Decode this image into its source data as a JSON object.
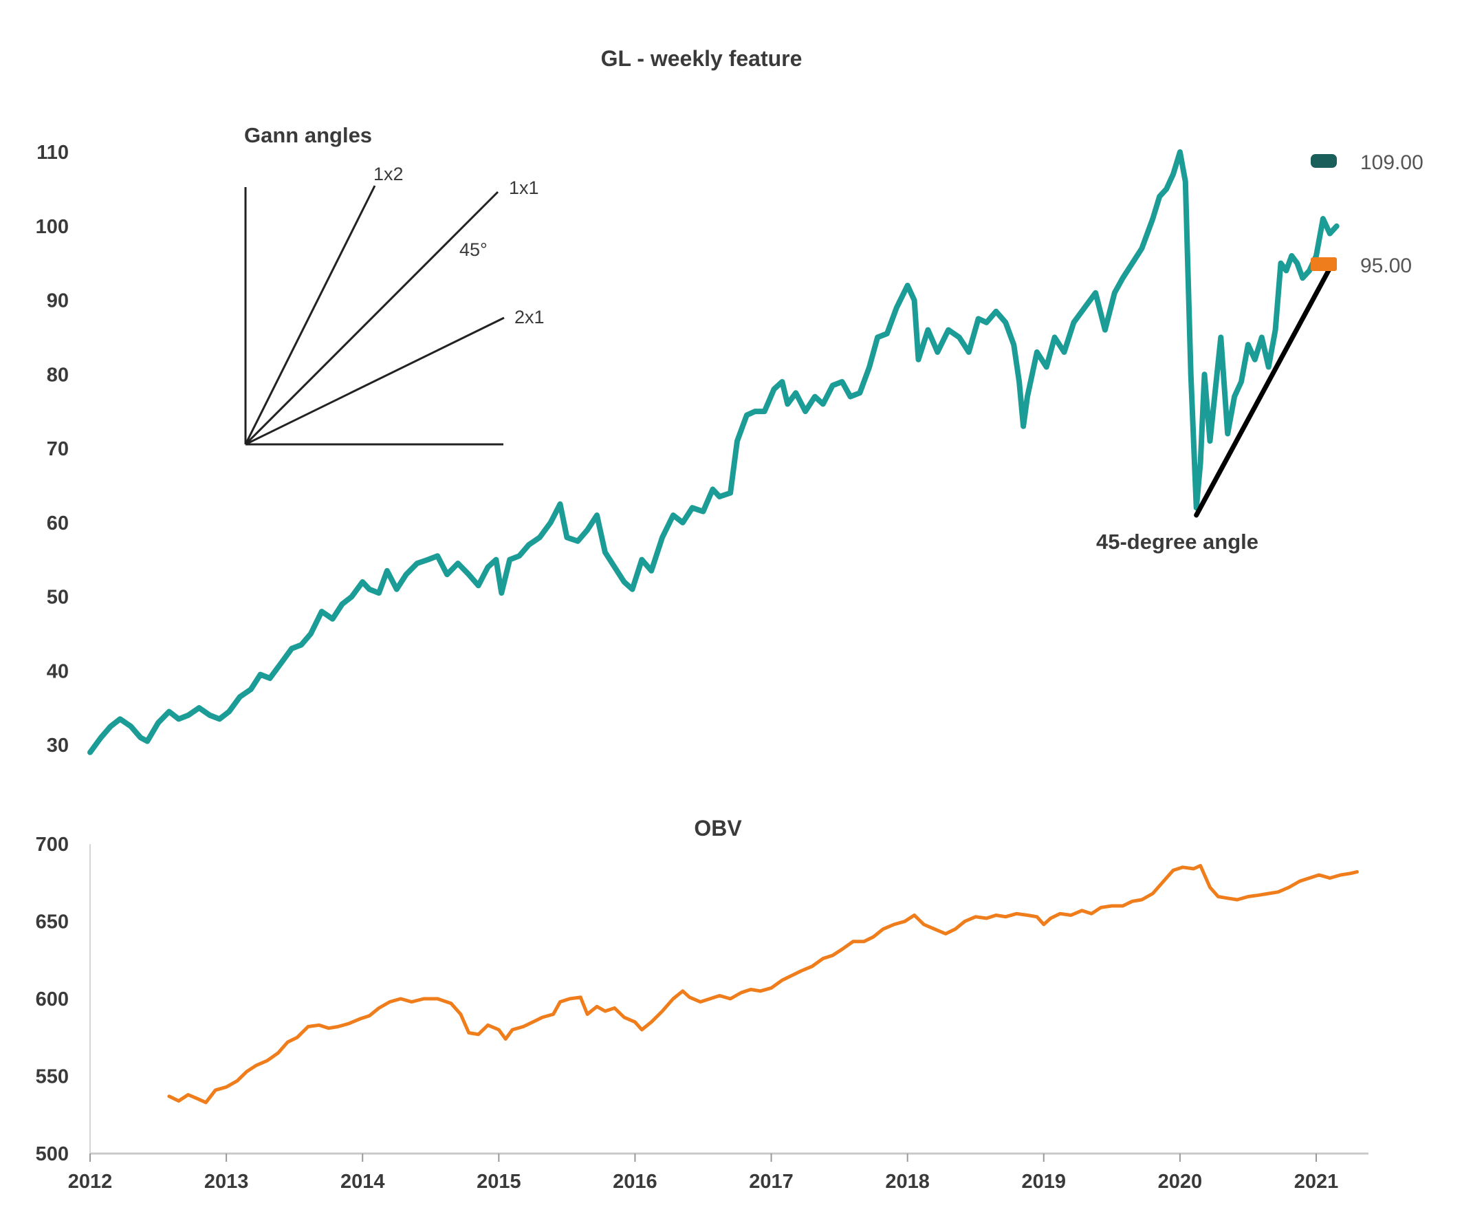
{
  "chart_data": [
    {
      "type": "line",
      "title": "GL - weekly feature",
      "ylim": [
        28,
        112
      ],
      "yticks": [
        "30",
        "40",
        "50",
        "60",
        "70",
        "80",
        "90",
        "100",
        "110"
      ],
      "grid": false,
      "legend": [
        {
          "label": "109.00",
          "color": "#1a5f5a"
        },
        {
          "label": "95.00",
          "color": "#f07d1b"
        }
      ],
      "series": [
        {
          "color": "#1c9c96",
          "points": [
            [
              2012.0,
              29
            ],
            [
              2012.08,
              31
            ],
            [
              2012.15,
              32.5
            ],
            [
              2012.22,
              33.5
            ],
            [
              2012.3,
              32.5
            ],
            [
              2012.37,
              31
            ],
            [
              2012.42,
              30.5
            ],
            [
              2012.5,
              33
            ],
            [
              2012.58,
              34.5
            ],
            [
              2012.65,
              33.5
            ],
            [
              2012.72,
              34
            ],
            [
              2012.8,
              35
            ],
            [
              2012.88,
              34
            ],
            [
              2012.95,
              33.5
            ],
            [
              2013.02,
              34.5
            ],
            [
              2013.1,
              36.5
            ],
            [
              2013.18,
              37.5
            ],
            [
              2013.25,
              39.5
            ],
            [
              2013.32,
              39
            ],
            [
              2013.4,
              41
            ],
            [
              2013.48,
              43
            ],
            [
              2013.55,
              43.5
            ],
            [
              2013.62,
              45
            ],
            [
              2013.7,
              48
            ],
            [
              2013.78,
              47
            ],
            [
              2013.85,
              49
            ],
            [
              2013.92,
              50
            ],
            [
              2014.0,
              52
            ],
            [
              2014.05,
              51
            ],
            [
              2014.12,
              50.5
            ],
            [
              2014.18,
              53.5
            ],
            [
              2014.25,
              51
            ],
            [
              2014.32,
              53
            ],
            [
              2014.4,
              54.5
            ],
            [
              2014.48,
              55
            ],
            [
              2014.55,
              55.5
            ],
            [
              2014.62,
              53
            ],
            [
              2014.7,
              54.5
            ],
            [
              2014.78,
              53
            ],
            [
              2014.85,
              51.5
            ],
            [
              2014.92,
              54
            ],
            [
              2014.98,
              55
            ],
            [
              2015.02,
              50.5
            ],
            [
              2015.08,
              55
            ],
            [
              2015.15,
              55.5
            ],
            [
              2015.22,
              57
            ],
            [
              2015.3,
              58
            ],
            [
              2015.38,
              60
            ],
            [
              2015.45,
              62.5
            ],
            [
              2015.5,
              58
            ],
            [
              2015.58,
              57.5
            ],
            [
              2015.65,
              59
            ],
            [
              2015.72,
              61
            ],
            [
              2015.78,
              56
            ],
            [
              2015.85,
              54
            ],
            [
              2015.92,
              52
            ],
            [
              2015.98,
              51
            ],
            [
              2016.05,
              55
            ],
            [
              2016.12,
              53.5
            ],
            [
              2016.2,
              58
            ],
            [
              2016.28,
              61
            ],
            [
              2016.35,
              60
            ],
            [
              2016.42,
              62
            ],
            [
              2016.5,
              61.5
            ],
            [
              2016.57,
              64.5
            ],
            [
              2016.62,
              63.5
            ],
            [
              2016.7,
              64
            ],
            [
              2016.75,
              71
            ],
            [
              2016.82,
              74.5
            ],
            [
              2016.88,
              75
            ],
            [
              2016.95,
              75
            ],
            [
              2017.02,
              78
            ],
            [
              2017.08,
              79
            ],
            [
              2017.12,
              76
            ],
            [
              2017.18,
              77.5
            ],
            [
              2017.25,
              75
            ],
            [
              2017.32,
              77
            ],
            [
              2017.38,
              76
            ],
            [
              2017.45,
              78.5
            ],
            [
              2017.52,
              79
            ],
            [
              2017.58,
              77
            ],
            [
              2017.65,
              77.5
            ],
            [
              2017.72,
              81
            ],
            [
              2017.78,
              85
            ],
            [
              2017.85,
              85.5
            ],
            [
              2017.92,
              89
            ],
            [
              2018.0,
              92
            ],
            [
              2018.05,
              90
            ],
            [
              2018.08,
              82
            ],
            [
              2018.15,
              86
            ],
            [
              2018.22,
              83
            ],
            [
              2018.3,
              86
            ],
            [
              2018.38,
              85
            ],
            [
              2018.45,
              83
            ],
            [
              2018.52,
              87.5
            ],
            [
              2018.58,
              87
            ],
            [
              2018.65,
              88.5
            ],
            [
              2018.72,
              87
            ],
            [
              2018.78,
              84
            ],
            [
              2018.82,
              79
            ],
            [
              2018.85,
              73
            ],
            [
              2018.88,
              77
            ],
            [
              2018.95,
              83
            ],
            [
              2019.02,
              81
            ],
            [
              2019.08,
              85
            ],
            [
              2019.15,
              83
            ],
            [
              2019.22,
              87
            ],
            [
              2019.3,
              89
            ],
            [
              2019.38,
              91
            ],
            [
              2019.45,
              86
            ],
            [
              2019.52,
              91
            ],
            [
              2019.58,
              93
            ],
            [
              2019.65,
              95
            ],
            [
              2019.72,
              97
            ],
            [
              2019.8,
              101
            ],
            [
              2019.85,
              104
            ],
            [
              2019.9,
              105
            ],
            [
              2019.95,
              107
            ],
            [
              2020.0,
              110
            ],
            [
              2020.04,
              106
            ],
            [
              2020.08,
              80
            ],
            [
              2020.12,
              62
            ],
            [
              2020.15,
              68
            ],
            [
              2020.18,
              80
            ],
            [
              2020.22,
              71
            ],
            [
              2020.26,
              78
            ],
            [
              2020.3,
              85
            ],
            [
              2020.35,
              72
            ],
            [
              2020.4,
              77
            ],
            [
              2020.45,
              79
            ],
            [
              2020.5,
              84
            ],
            [
              2020.55,
              82
            ],
            [
              2020.6,
              85
            ],
            [
              2020.65,
              81
            ],
            [
              2020.7,
              86
            ],
            [
              2020.74,
              95
            ],
            [
              2020.78,
              94
            ],
            [
              2020.82,
              96
            ],
            [
              2020.86,
              95
            ],
            [
              2020.9,
              93
            ],
            [
              2020.95,
              94
            ],
            [
              2021.0,
              96
            ],
            [
              2021.05,
              101
            ],
            [
              2021.1,
              99
            ],
            [
              2021.15,
              100
            ]
          ]
        }
      ]
    },
    {
      "type": "line",
      "title": "OBV",
      "ylim": [
        500,
        700
      ],
      "yticks": [
        "500",
        "550",
        "600",
        "650",
        "700"
      ],
      "xticks": [
        "2012",
        "2013",
        "2014",
        "2015",
        "2016",
        "2017",
        "2018",
        "2019",
        "2020",
        "2021"
      ],
      "grid": false,
      "series": [
        {
          "color": "#f07d1b",
          "points": [
            [
              2012.58,
              537
            ],
            [
              2012.65,
              534
            ],
            [
              2012.72,
              538
            ],
            [
              2012.8,
              535
            ],
            [
              2012.85,
              533
            ],
            [
              2012.92,
              541
            ],
            [
              2013.0,
              543
            ],
            [
              2013.08,
              547
            ],
            [
              2013.15,
              553
            ],
            [
              2013.22,
              557
            ],
            [
              2013.3,
              560
            ],
            [
              2013.38,
              565
            ],
            [
              2013.45,
              572
            ],
            [
              2013.52,
              575
            ],
            [
              2013.6,
              582
            ],
            [
              2013.68,
              583
            ],
            [
              2013.75,
              581
            ],
            [
              2013.82,
              582
            ],
            [
              2013.9,
              584
            ],
            [
              2013.98,
              587
            ],
            [
              2014.05,
              589
            ],
            [
              2014.12,
              594
            ],
            [
              2014.2,
              598
            ],
            [
              2014.28,
              600
            ],
            [
              2014.36,
              598
            ],
            [
              2014.45,
              600
            ],
            [
              2014.55,
              600
            ],
            [
              2014.65,
              597
            ],
            [
              2014.72,
              590
            ],
            [
              2014.78,
              578
            ],
            [
              2014.85,
              577
            ],
            [
              2014.92,
              583
            ],
            [
              2015.0,
              580
            ],
            [
              2015.05,
              574
            ],
            [
              2015.1,
              580
            ],
            [
              2015.18,
              582
            ],
            [
              2015.25,
              585
            ],
            [
              2015.32,
              588
            ],
            [
              2015.4,
              590
            ],
            [
              2015.45,
              598
            ],
            [
              2015.52,
              600
            ],
            [
              2015.6,
              601
            ],
            [
              2015.65,
              590
            ],
            [
              2015.72,
              595
            ],
            [
              2015.78,
              592
            ],
            [
              2015.85,
              594
            ],
            [
              2015.92,
              588
            ],
            [
              2016.0,
              585
            ],
            [
              2016.05,
              580
            ],
            [
              2016.12,
              585
            ],
            [
              2016.2,
              592
            ],
            [
              2016.28,
              600
            ],
            [
              2016.35,
              605
            ],
            [
              2016.4,
              601
            ],
            [
              2016.48,
              598
            ],
            [
              2016.55,
              600
            ],
            [
              2016.62,
              602
            ],
            [
              2016.7,
              600
            ],
            [
              2016.78,
              604
            ],
            [
              2016.85,
              606
            ],
            [
              2016.92,
              605
            ],
            [
              2017.0,
              607
            ],
            [
              2017.08,
              612
            ],
            [
              2017.15,
              615
            ],
            [
              2017.22,
              618
            ],
            [
              2017.3,
              621
            ],
            [
              2017.38,
              626
            ],
            [
              2017.45,
              628
            ],
            [
              2017.52,
              632
            ],
            [
              2017.6,
              637
            ],
            [
              2017.68,
              637
            ],
            [
              2017.75,
              640
            ],
            [
              2017.82,
              645
            ],
            [
              2017.9,
              648
            ],
            [
              2017.98,
              650
            ],
            [
              2018.05,
              654
            ],
            [
              2018.12,
              648
            ],
            [
              2018.2,
              645
            ],
            [
              2018.28,
              642
            ],
            [
              2018.35,
              645
            ],
            [
              2018.42,
              650
            ],
            [
              2018.5,
              653
            ],
            [
              2018.58,
              652
            ],
            [
              2018.65,
              654
            ],
            [
              2018.72,
              653
            ],
            [
              2018.8,
              655
            ],
            [
              2018.88,
              654
            ],
            [
              2018.95,
              653
            ],
            [
              2019.0,
              648
            ],
            [
              2019.05,
              652
            ],
            [
              2019.12,
              655
            ],
            [
              2019.2,
              654
            ],
            [
              2019.28,
              657
            ],
            [
              2019.35,
              655
            ],
            [
              2019.42,
              659
            ],
            [
              2019.5,
              660
            ],
            [
              2019.58,
              660
            ],
            [
              2019.65,
              663
            ],
            [
              2019.72,
              664
            ],
            [
              2019.8,
              668
            ],
            [
              2019.88,
              676
            ],
            [
              2019.95,
              683
            ],
            [
              2020.02,
              685
            ],
            [
              2020.1,
              684
            ],
            [
              2020.15,
              686
            ],
            [
              2020.22,
              672
            ],
            [
              2020.28,
              666
            ],
            [
              2020.35,
              665
            ],
            [
              2020.42,
              664
            ],
            [
              2020.5,
              666
            ],
            [
              2020.58,
              667
            ],
            [
              2020.65,
              668
            ],
            [
              2020.72,
              669
            ],
            [
              2020.8,
              672
            ],
            [
              2020.88,
              676
            ],
            [
              2020.95,
              678
            ],
            [
              2021.02,
              680
            ],
            [
              2021.1,
              678
            ],
            [
              2021.18,
              680
            ],
            [
              2021.25,
              681
            ],
            [
              2021.3,
              682
            ]
          ]
        }
      ]
    }
  ],
  "annotations": {
    "gann_title": "Gann angles",
    "label_1x2": "1x2",
    "label_1x1": "1x1",
    "label_45": "45°",
    "label_2x1": "2x1",
    "angle_label": "45-degree angle",
    "angle_line": {
      "start": [
        2020.12,
        61
      ],
      "end": [
        2021.12,
        95
      ]
    }
  }
}
